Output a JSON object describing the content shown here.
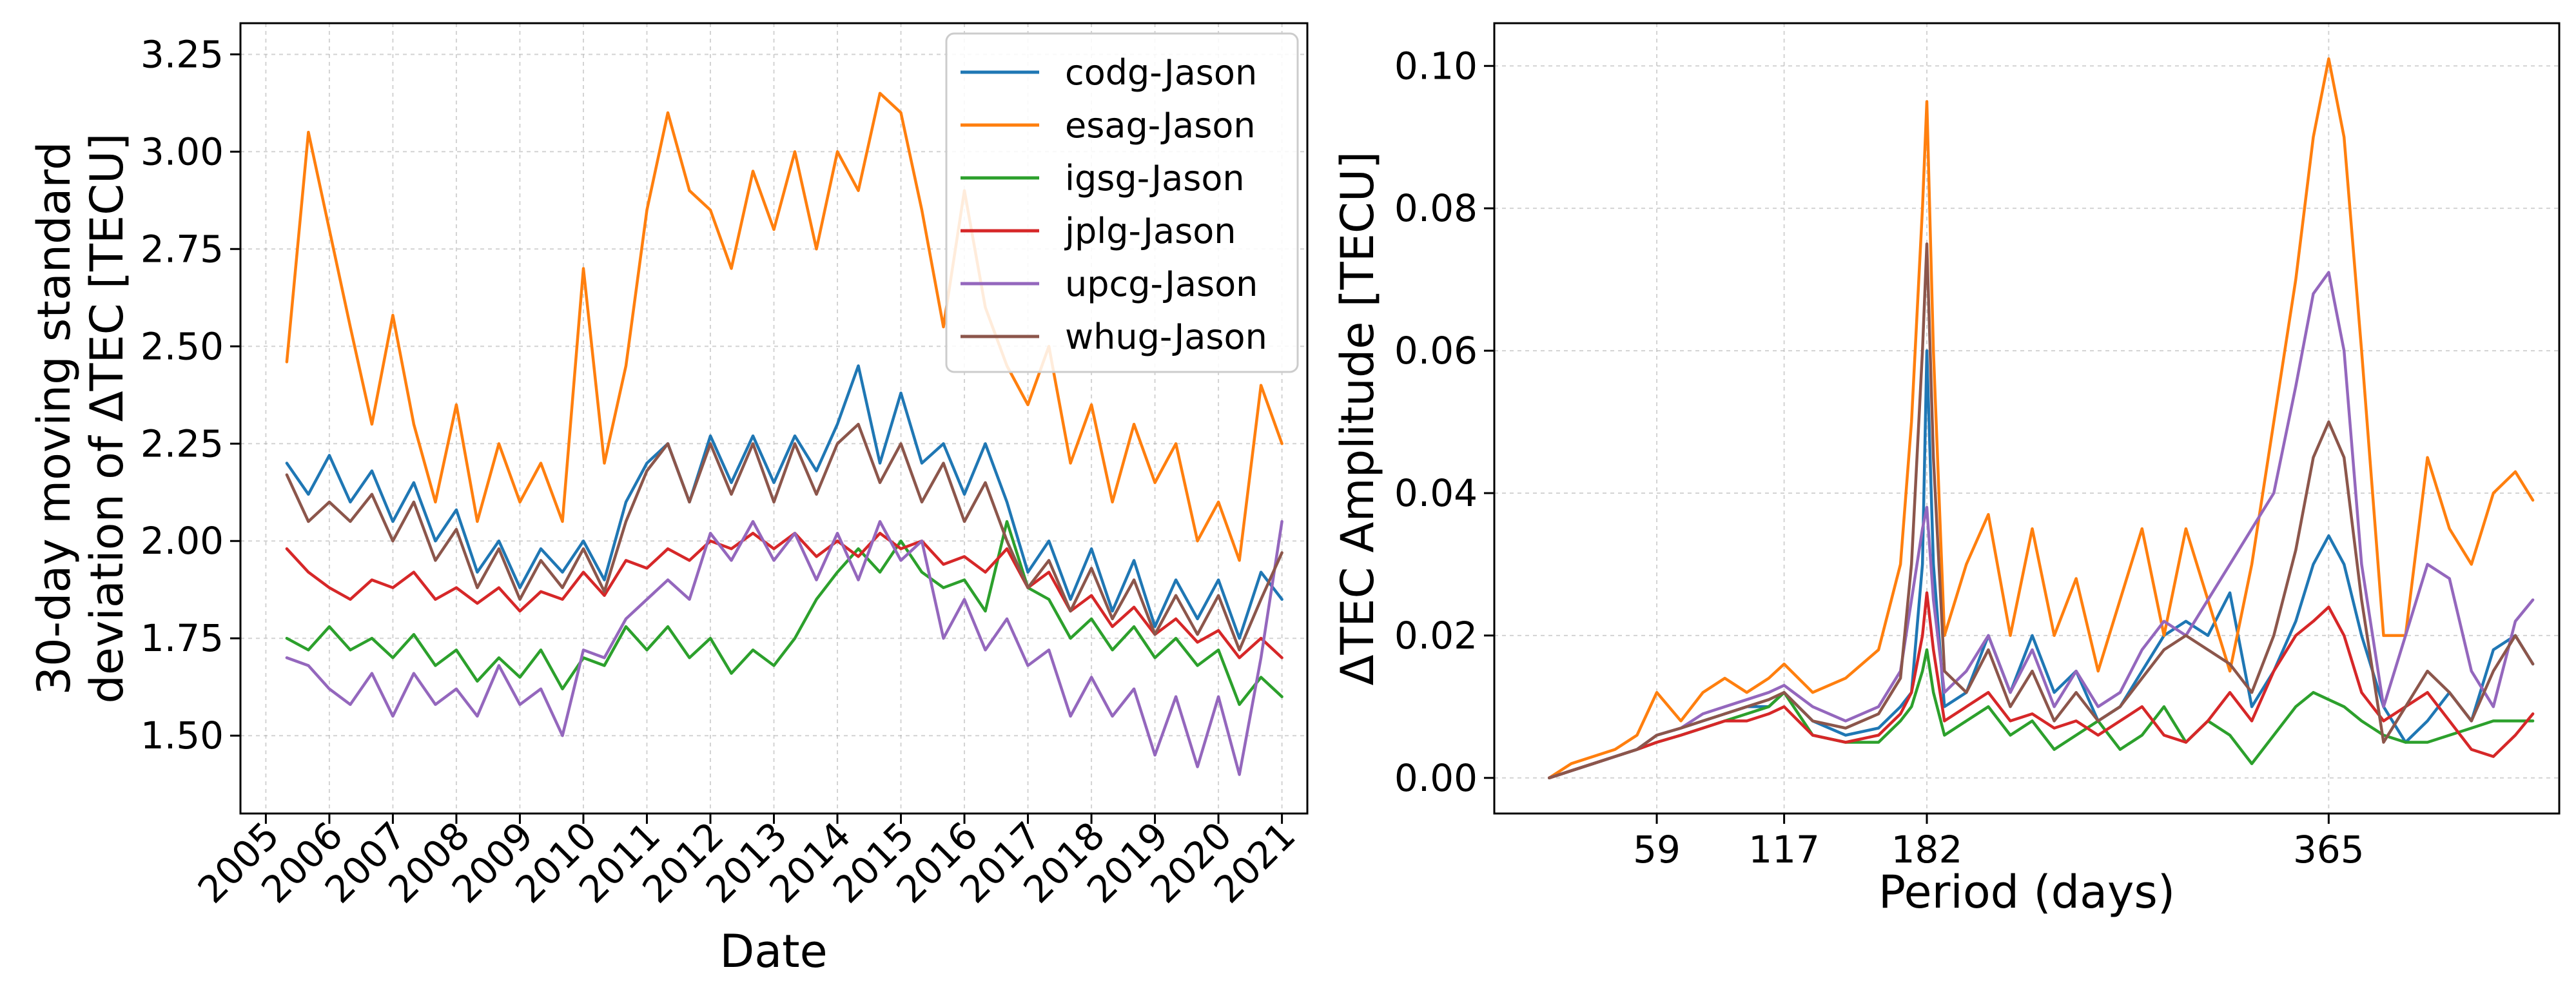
{
  "colors": {
    "codg-Jason": "#1f77b4",
    "esag-Jason": "#ff7f0e",
    "igsg-Jason": "#2ca02c",
    "jplg-Jason": "#d62728",
    "upcg-Jason": "#9467bd",
    "whug-Jason": "#8c564b"
  },
  "chart_data": [
    {
      "type": "line",
      "title": "",
      "xlabel": "Date",
      "ylabel": "30-day moving standard\ndeviation of ΔTEC [TECU]",
      "ylabel_lines": [
        "30-day moving standard",
        "deviation of ΔTEC [TECU]"
      ],
      "xlim": [
        2004.6,
        2021.4
      ],
      "ylim": [
        1.3,
        3.33
      ],
      "x_ticks": [
        2005,
        2006,
        2007,
        2008,
        2009,
        2010,
        2011,
        2012,
        2013,
        2014,
        2015,
        2016,
        2017,
        2018,
        2019,
        2020,
        2021
      ],
      "x_tick_labels": [
        "2005",
        "2006",
        "2007",
        "2008",
        "2009",
        "2010",
        "2011",
        "2012",
        "2013",
        "2014",
        "2015",
        "2016",
        "2017",
        "2018",
        "2019",
        "2020",
        "2021"
      ],
      "y_ticks": [
        1.5,
        1.75,
        2.0,
        2.25,
        2.5,
        2.75,
        3.0,
        3.25
      ],
      "y_tick_labels": [
        "1.50",
        "1.75",
        "2.00",
        "2.25",
        "2.50",
        "2.75",
        "3.00",
        "3.25"
      ],
      "grid": true,
      "legend": {
        "position": "top-right",
        "entries": [
          "codg-Jason",
          "esag-Jason",
          "igsg-Jason",
          "jplg-Jason",
          "upcg-Jason",
          "whug-Jason"
        ]
      },
      "x": [
        2005.33,
        2005.67,
        2006.0,
        2006.33,
        2006.67,
        2007.0,
        2007.33,
        2007.67,
        2008.0,
        2008.33,
        2008.67,
        2009.0,
        2009.33,
        2009.67,
        2010.0,
        2010.33,
        2010.67,
        2011.0,
        2011.33,
        2011.67,
        2012.0,
        2012.33,
        2012.67,
        2013.0,
        2013.33,
        2013.67,
        2014.0,
        2014.33,
        2014.67,
        2015.0,
        2015.33,
        2015.67,
        2016.0,
        2016.33,
        2016.67,
        2017.0,
        2017.33,
        2017.67,
        2018.0,
        2018.33,
        2018.67,
        2019.0,
        2019.33,
        2019.67,
        2020.0,
        2020.33,
        2020.67,
        2021.0
      ],
      "series": [
        {
          "name": "codg-Jason",
          "values": [
            2.2,
            2.12,
            2.22,
            2.1,
            2.18,
            2.05,
            2.15,
            2.0,
            2.08,
            1.92,
            2.0,
            1.88,
            1.98,
            1.92,
            2.0,
            1.9,
            2.1,
            2.2,
            2.25,
            2.1,
            2.27,
            2.15,
            2.27,
            2.15,
            2.27,
            2.18,
            2.3,
            2.45,
            2.2,
            2.38,
            2.2,
            2.25,
            2.12,
            2.25,
            2.1,
            1.92,
            2.0,
            1.85,
            1.98,
            1.82,
            1.95,
            1.78,
            1.9,
            1.8,
            1.9,
            1.75,
            1.92,
            1.85
          ]
        },
        {
          "name": "esag-Jason",
          "values": [
            2.46,
            3.05,
            2.8,
            2.55,
            2.3,
            2.58,
            2.3,
            2.1,
            2.35,
            2.05,
            2.25,
            2.1,
            2.2,
            2.05,
            2.7,
            2.2,
            2.45,
            2.85,
            3.1,
            2.9,
            2.85,
            2.7,
            2.95,
            2.8,
            3.0,
            2.75,
            3.0,
            2.9,
            3.15,
            3.1,
            2.85,
            2.55,
            2.9,
            2.6,
            2.45,
            2.35,
            2.5,
            2.2,
            2.35,
            2.1,
            2.3,
            2.15,
            2.25,
            2.0,
            2.1,
            1.95,
            2.4,
            2.25
          ]
        },
        {
          "name": "igsg-Jason",
          "values": [
            1.75,
            1.72,
            1.78,
            1.72,
            1.75,
            1.7,
            1.76,
            1.68,
            1.72,
            1.64,
            1.7,
            1.65,
            1.72,
            1.62,
            1.7,
            1.68,
            1.78,
            1.72,
            1.78,
            1.7,
            1.75,
            1.66,
            1.72,
            1.68,
            1.75,
            1.85,
            1.92,
            1.98,
            1.92,
            2.0,
            1.92,
            1.88,
            1.9,
            1.82,
            2.05,
            1.88,
            1.85,
            1.75,
            1.8,
            1.72,
            1.78,
            1.7,
            1.75,
            1.68,
            1.72,
            1.58,
            1.65,
            1.6
          ]
        },
        {
          "name": "jplg-Jason",
          "values": [
            1.98,
            1.92,
            1.88,
            1.85,
            1.9,
            1.88,
            1.92,
            1.85,
            1.88,
            1.84,
            1.88,
            1.82,
            1.87,
            1.85,
            1.92,
            1.86,
            1.95,
            1.93,
            1.98,
            1.95,
            2.0,
            1.98,
            2.02,
            1.98,
            2.02,
            1.96,
            2.0,
            1.96,
            2.02,
            1.98,
            2.0,
            1.94,
            1.96,
            1.92,
            1.98,
            1.88,
            1.92,
            1.82,
            1.86,
            1.78,
            1.83,
            1.76,
            1.8,
            1.74,
            1.77,
            1.7,
            1.75,
            1.7
          ]
        },
        {
          "name": "upcg-Jason",
          "values": [
            1.7,
            1.68,
            1.62,
            1.58,
            1.66,
            1.55,
            1.66,
            1.58,
            1.62,
            1.55,
            1.68,
            1.58,
            1.62,
            1.5,
            1.72,
            1.7,
            1.8,
            1.85,
            1.9,
            1.85,
            2.02,
            1.95,
            2.05,
            1.95,
            2.02,
            1.9,
            2.02,
            1.9,
            2.05,
            1.95,
            2.0,
            1.75,
            1.85,
            1.72,
            1.8,
            1.68,
            1.72,
            1.55,
            1.65,
            1.55,
            1.62,
            1.45,
            1.6,
            1.42,
            1.6,
            1.4,
            1.7,
            2.05
          ]
        },
        {
          "name": "whug-Jason",
          "values": [
            2.17,
            2.05,
            2.1,
            2.05,
            2.12,
            2.0,
            2.1,
            1.95,
            2.03,
            1.88,
            1.98,
            1.85,
            1.95,
            1.88,
            1.98,
            1.87,
            2.05,
            2.18,
            2.25,
            2.1,
            2.25,
            2.12,
            2.25,
            2.1,
            2.25,
            2.12,
            2.25,
            2.3,
            2.15,
            2.25,
            2.1,
            2.2,
            2.05,
            2.15,
            2.0,
            1.88,
            1.95,
            1.82,
            1.93,
            1.8,
            1.9,
            1.76,
            1.86,
            1.76,
            1.86,
            1.72,
            1.85,
            1.97
          ]
        }
      ]
    },
    {
      "type": "line",
      "title": "",
      "xlabel": "Period (days)",
      "ylabel": "ΔTEC Amplitude [TECU]",
      "xlim": [
        -15,
        470
      ],
      "ylim": [
        -0.005,
        0.106
      ],
      "x_ticks": [
        59,
        117,
        182,
        365
      ],
      "x_tick_labels": [
        "59",
        "117",
        "182",
        "365"
      ],
      "y_ticks": [
        0.0,
        0.02,
        0.04,
        0.06,
        0.08,
        0.1
      ],
      "y_tick_labels": [
        "0.00",
        "0.02",
        "0.04",
        "0.06",
        "0.08",
        "0.10"
      ],
      "grid": true,
      "x": [
        10,
        20,
        30,
        40,
        50,
        59,
        70,
        80,
        90,
        100,
        110,
        117,
        130,
        145,
        160,
        170,
        175,
        180,
        182,
        185,
        190,
        200,
        210,
        220,
        230,
        240,
        250,
        260,
        270,
        280,
        290,
        300,
        310,
        320,
        330,
        340,
        350,
        358,
        365,
        372,
        380,
        390,
        400,
        410,
        420,
        430,
        440,
        450,
        458
      ],
      "series": [
        {
          "name": "codg-Jason",
          "values": [
            0,
            0.001,
            0.002,
            0.003,
            0.004,
            0.006,
            0.007,
            0.008,
            0.009,
            0.01,
            0.01,
            0.012,
            0.008,
            0.006,
            0.007,
            0.01,
            0.012,
            0.03,
            0.06,
            0.03,
            0.01,
            0.012,
            0.02,
            0.012,
            0.02,
            0.012,
            0.015,
            0.008,
            0.01,
            0.015,
            0.02,
            0.022,
            0.02,
            0.026,
            0.01,
            0.015,
            0.022,
            0.03,
            0.034,
            0.03,
            0.02,
            0.01,
            0.005,
            0.008,
            0.012,
            0.008,
            0.018,
            0.02,
            0.016
          ]
        },
        {
          "name": "esag-Jason",
          "values": [
            0,
            0.002,
            0.003,
            0.004,
            0.006,
            0.012,
            0.008,
            0.012,
            0.014,
            0.012,
            0.014,
            0.016,
            0.012,
            0.014,
            0.018,
            0.03,
            0.05,
            0.08,
            0.095,
            0.06,
            0.02,
            0.03,
            0.037,
            0.02,
            0.035,
            0.02,
            0.028,
            0.015,
            0.025,
            0.035,
            0.02,
            0.035,
            0.025,
            0.015,
            0.03,
            0.05,
            0.07,
            0.09,
            0.101,
            0.09,
            0.06,
            0.02,
            0.02,
            0.045,
            0.035,
            0.03,
            0.04,
            0.043,
            0.039
          ]
        },
        {
          "name": "igsg-Jason",
          "values": [
            0,
            0.001,
            0.002,
            0.003,
            0.004,
            0.005,
            0.006,
            0.007,
            0.008,
            0.009,
            0.01,
            0.012,
            0.006,
            0.005,
            0.005,
            0.008,
            0.01,
            0.015,
            0.018,
            0.012,
            0.006,
            0.008,
            0.01,
            0.006,
            0.008,
            0.004,
            0.006,
            0.008,
            0.004,
            0.006,
            0.01,
            0.005,
            0.008,
            0.006,
            0.002,
            0.006,
            0.01,
            0.012,
            0.011,
            0.01,
            0.008,
            0.006,
            0.005,
            0.005,
            0.006,
            0.007,
            0.008,
            0.008,
            0.008
          ]
        },
        {
          "name": "jplg-Jason",
          "values": [
            0,
            0.001,
            0.002,
            0.003,
            0.004,
            0.005,
            0.006,
            0.007,
            0.008,
            0.008,
            0.009,
            0.01,
            0.006,
            0.005,
            0.006,
            0.009,
            0.012,
            0.02,
            0.026,
            0.018,
            0.008,
            0.01,
            0.012,
            0.008,
            0.009,
            0.007,
            0.008,
            0.006,
            0.008,
            0.01,
            0.006,
            0.005,
            0.008,
            0.012,
            0.008,
            0.015,
            0.02,
            0.022,
            0.024,
            0.02,
            0.012,
            0.008,
            0.01,
            0.012,
            0.008,
            0.004,
            0.003,
            0.006,
            0.009
          ]
        },
        {
          "name": "upcg-Jason",
          "values": [
            0,
            0.001,
            0.002,
            0.003,
            0.004,
            0.006,
            0.007,
            0.009,
            0.01,
            0.011,
            0.012,
            0.013,
            0.01,
            0.008,
            0.01,
            0.015,
            0.025,
            0.035,
            0.038,
            0.025,
            0.012,
            0.015,
            0.02,
            0.012,
            0.018,
            0.01,
            0.015,
            0.01,
            0.012,
            0.018,
            0.022,
            0.02,
            0.025,
            0.03,
            0.035,
            0.04,
            0.055,
            0.068,
            0.071,
            0.06,
            0.03,
            0.01,
            0.02,
            0.03,
            0.028,
            0.015,
            0.01,
            0.022,
            0.025
          ]
        },
        {
          "name": "whug-Jason",
          "values": [
            0,
            0.001,
            0.002,
            0.003,
            0.004,
            0.006,
            0.007,
            0.008,
            0.009,
            0.01,
            0.011,
            0.012,
            0.008,
            0.007,
            0.009,
            0.014,
            0.03,
            0.06,
            0.075,
            0.045,
            0.015,
            0.012,
            0.018,
            0.01,
            0.015,
            0.008,
            0.012,
            0.008,
            0.01,
            0.014,
            0.018,
            0.02,
            0.018,
            0.016,
            0.012,
            0.02,
            0.032,
            0.045,
            0.05,
            0.045,
            0.025,
            0.005,
            0.01,
            0.015,
            0.012,
            0.008,
            0.015,
            0.02,
            0.016
          ]
        }
      ]
    }
  ]
}
